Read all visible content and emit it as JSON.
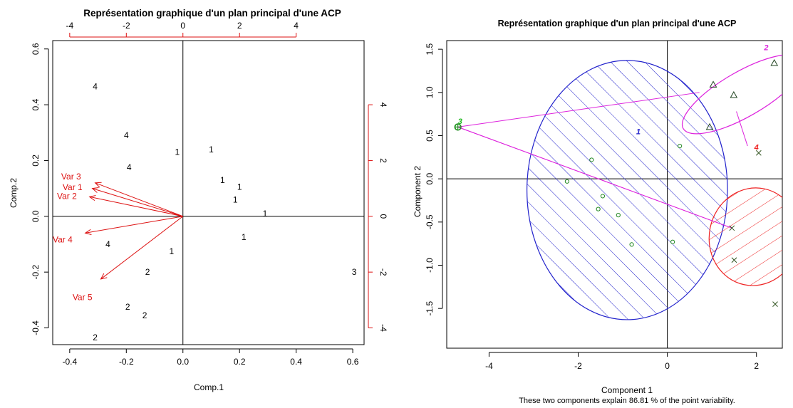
{
  "chart_data": [
    {
      "type": "scatter",
      "subtype": "biplot",
      "title": "Représentation graphique d'un plan principal d'une ACP",
      "xlabel": "Comp.1",
      "ylabel": "Comp.2",
      "xlim": [
        -0.46,
        0.64
      ],
      "ylim": [
        -0.46,
        0.63
      ],
      "xticks": [
        "-0.4",
        "-0.2",
        "0.0",
        "0.2",
        "0.4",
        "0.6"
      ],
      "yticks": [
        "-0.4",
        "-0.2",
        "0.0",
        "0.2",
        "0.4",
        "0.6"
      ],
      "xticks_top": [
        "-4",
        "-2",
        "0",
        "2",
        "4"
      ],
      "yticks_right": [
        "-4",
        "-2",
        "0",
        "2",
        "4"
      ],
      "secondary_scale": 10,
      "points": [
        {
          "label": "4",
          "x": -0.31,
          "y": 0.465
        },
        {
          "label": "4",
          "x": -0.2,
          "y": 0.29
        },
        {
          "label": "4",
          "x": -0.19,
          "y": 0.175
        },
        {
          "label": "4",
          "x": -0.265,
          "y": -0.1
        },
        {
          "label": "1",
          "x": -0.02,
          "y": 0.23
        },
        {
          "label": "1",
          "x": 0.1,
          "y": 0.24
        },
        {
          "label": "1",
          "x": 0.14,
          "y": 0.13
        },
        {
          "label": "1",
          "x": 0.2,
          "y": 0.105
        },
        {
          "label": "1",
          "x": 0.185,
          "y": 0.06
        },
        {
          "label": "1",
          "x": 0.29,
          "y": 0.01
        },
        {
          "label": "1",
          "x": 0.215,
          "y": -0.075
        },
        {
          "label": "1",
          "x": -0.04,
          "y": -0.125
        },
        {
          "label": "3",
          "x": 0.605,
          "y": -0.2
        },
        {
          "label": "2",
          "x": -0.125,
          "y": -0.2
        },
        {
          "label": "2",
          "x": -0.195,
          "y": -0.325
        },
        {
          "label": "2",
          "x": -0.135,
          "y": -0.355
        },
        {
          "label": "2",
          "x": -0.31,
          "y": -0.435
        }
      ],
      "arrows": [
        {
          "label": "Var 3",
          "x": -0.31,
          "y": 0.12,
          "lx": -0.395,
          "ly": 0.142
        },
        {
          "label": "Var 1",
          "x": -0.32,
          "y": 0.1,
          "lx": -0.39,
          "ly": 0.104
        },
        {
          "label": "Var 2",
          "x": -0.33,
          "y": 0.07,
          "lx": -0.41,
          "ly": 0.072
        },
        {
          "label": "Var 4",
          "x": -0.345,
          "y": -0.06,
          "lx": -0.425,
          "ly": -0.083
        },
        {
          "label": "Var 5",
          "x": -0.29,
          "y": -0.225,
          "lx": -0.355,
          "ly": -0.29
        }
      ]
    },
    {
      "type": "scatter",
      "subtype": "cluster-plot",
      "title": "Représentation graphique d'un plan principal d'une ACP",
      "xlabel": "Component 1",
      "ylabel": "Component 2",
      "subtitle": "These two components explain 86.81 % of the point variability.",
      "xlim": [
        -4.95,
        2.58
      ],
      "ylim": [
        -1.96,
        1.6
      ],
      "xticks": [
        "-4",
        "-2",
        "0",
        "2"
      ],
      "yticks": [
        "-1.5",
        "-1.0",
        "-0.5",
        "0.0",
        "0.5",
        "1.0",
        "1.5"
      ],
      "clusters": [
        {
          "label": "1",
          "color": "#2222cc",
          "cx": -0.9,
          "cy": -0.13,
          "rx": 2.25,
          "ry": 1.5,
          "rot": -0.1,
          "lx": -0.65,
          "ly": 0.55,
          "marker": "circle",
          "points": [
            [
              -2.25,
              -0.03
            ],
            [
              -1.7,
              0.22
            ],
            [
              -1.45,
              -0.2
            ],
            [
              -1.55,
              -0.35
            ],
            [
              -1.1,
              -0.42
            ],
            [
              -0.8,
              -0.76
            ],
            [
              0.12,
              -0.73
            ],
            [
              0.28,
              0.38
            ]
          ]
        },
        {
          "label": "2",
          "color": "#dd22dd",
          "cx": 1.7,
          "cy": 0.98,
          "rx": 1.55,
          "ry": 0.26,
          "rot": 30,
          "lx": 2.22,
          "ly": 1.52,
          "marker": "triangle",
          "points": [
            [
              1.03,
              1.09
            ],
            [
              1.49,
              0.97
            ],
            [
              0.95,
              0.6
            ],
            [
              2.4,
              1.34
            ]
          ]
        },
        {
          "label": "3",
          "color": "#22bb22",
          "cx": -4.7,
          "cy": 0.6,
          "rx": 0.06,
          "ry": 0.035,
          "rot": 0,
          "lx": -4.65,
          "ly": 0.67,
          "marker": "circle-plus",
          "points": [
            [
              -4.7,
              0.6
            ]
          ]
        },
        {
          "label": "4",
          "color": "#ee2222",
          "cx": 1.95,
          "cy": -0.67,
          "rx": 1.1,
          "ry": 0.52,
          "rot": 78,
          "lx": 2.0,
          "ly": 0.37,
          "marker": "cross",
          "points": [
            [
              2.05,
              0.3
            ],
            [
              1.45,
              -0.57
            ],
            [
              1.5,
              -0.94
            ],
            [
              2.42,
              -1.45
            ]
          ]
        }
      ],
      "connectors": [
        {
          "from": [
            -4.7,
            0.6
          ],
          "to": [
            0.72,
            1.0
          ]
        },
        {
          "from": [
            -4.7,
            0.6
          ],
          "to": [
            1.45,
            -0.57
          ]
        },
        {
          "from": [
            -4.7,
            0.6
          ],
          "to": [
            1.45,
            -0.57
          ]
        },
        {
          "from": [
            1.55,
            0.78
          ],
          "to": [
            1.8,
            0.38
          ]
        }
      ]
    }
  ]
}
